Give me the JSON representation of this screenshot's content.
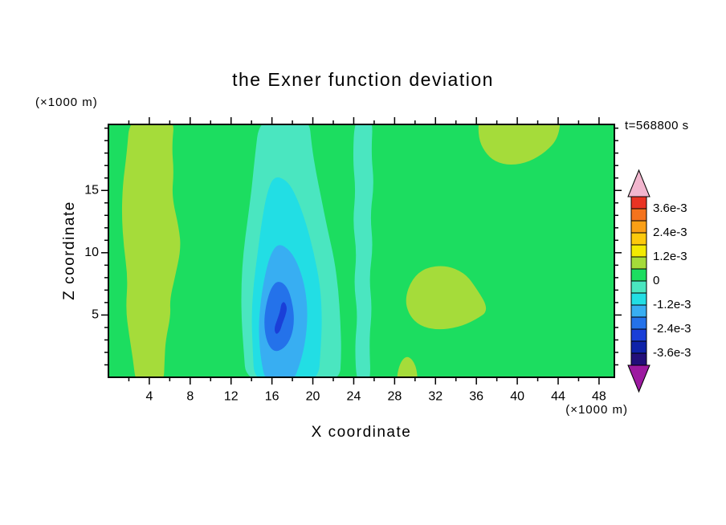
{
  "chart": {
    "title": "the Exner function deviation",
    "time_label": "t=568800 s",
    "xlabel": "X coordinate",
    "ylabel": "Z coordinate",
    "x_units": "(×1000 m)",
    "y_units": "(×1000 m)"
  },
  "chart_data": {
    "type": "contour",
    "title": "the Exner function deviation",
    "time_label": "t=568800 s",
    "xlabel": "X coordinate",
    "ylabel": "Z coordinate",
    "x_units": "(×1000 m)",
    "y_units": "(×1000 m)",
    "xlim": [
      0,
      49.5
    ],
    "ylim": [
      0,
      20.3
    ],
    "x_major_ticks": [
      4,
      8,
      12,
      16,
      20,
      24,
      28,
      32,
      36,
      40,
      44,
      48
    ],
    "x_minor_step": 2,
    "y_major_ticks": [
      5,
      10,
      15
    ],
    "y_minor_step": 1,
    "colorbar": {
      "levels": [
        -0.0042,
        -0.0036,
        -0.003,
        -0.0024,
        -0.0018,
        -0.0012,
        -0.0006,
        0,
        0.0006,
        0.0012,
        0.0018,
        0.0024,
        0.003,
        0.0036,
        0.0042
      ],
      "labels": [
        "3.6e-3",
        "2.4e-3",
        "1.2e-3",
        "0",
        "-1.2e-3",
        "-2.4e-3",
        "-3.6e-3"
      ],
      "band_colors_top_to_bottom": [
        "#e93323",
        "#f4731d",
        "#fa9f16",
        "#fcc90c",
        "#f3ea02",
        "#a5dc3a",
        "#1cdd60",
        "#4ae6c0",
        "#22dee4",
        "#38aef2",
        "#2472ea",
        "#1a3fd8",
        "#0e22a8",
        "#220f7a"
      ],
      "over_color": "#f2b6ce",
      "under_color": "#9c1aa0"
    },
    "background_region": {
      "name": "field-background",
      "level": "0 to 0.6e-3",
      "color": "#1cdd60"
    },
    "regions": [
      {
        "name": "left-positive-band",
        "level": "0.6e-3 to 1.2e-3",
        "color": "#a5dc3a",
        "points": [
          [
            2.1,
            21
          ],
          [
            6.5,
            21
          ],
          [
            6.2,
            18.5
          ],
          [
            6.4,
            16.5
          ],
          [
            6.2,
            14.5
          ],
          [
            6.9,
            12
          ],
          [
            7.1,
            10.3
          ],
          [
            6.5,
            8
          ],
          [
            6.0,
            6.2
          ],
          [
            6.1,
            5
          ],
          [
            5.6,
            3
          ],
          [
            5.5,
            1.5
          ],
          [
            5.4,
            -0.7
          ],
          [
            2.7,
            -0.7
          ],
          [
            2.4,
            1.5
          ],
          [
            2.0,
            3.5
          ],
          [
            1.7,
            5.5
          ],
          [
            1.9,
            8
          ],
          [
            1.5,
            10.5
          ],
          [
            1.3,
            13
          ],
          [
            1.4,
            15.5
          ],
          [
            1.8,
            18
          ]
        ]
      },
      {
        "name": "central-negative-tongue",
        "level": "-0.6e-3 to 0",
        "color": "#4ae6c0",
        "points": [
          [
            14.8,
            21
          ],
          [
            19.6,
            21
          ],
          [
            19.9,
            18.5
          ],
          [
            20.3,
            16.5
          ],
          [
            20.8,
            14.5
          ],
          [
            21.4,
            12
          ],
          [
            22.1,
            9.5
          ],
          [
            22.5,
            7
          ],
          [
            22.7,
            4.5
          ],
          [
            22.8,
            2
          ],
          [
            22.6,
            -0.7
          ],
          [
            13.5,
            -0.7
          ],
          [
            13.2,
            2.5
          ],
          [
            13.0,
            5
          ],
          [
            13.0,
            7.5
          ],
          [
            13.2,
            10
          ],
          [
            13.6,
            12.5
          ],
          [
            14.0,
            15
          ],
          [
            14.3,
            17.5
          ]
        ]
      },
      {
        "name": "vertical-negative-strip",
        "level": "-0.6e-3 to 0",
        "color": "#4ae6c0",
        "points": [
          [
            24.1,
            21
          ],
          [
            25.9,
            21
          ],
          [
            25.7,
            18
          ],
          [
            26.0,
            15.5
          ],
          [
            25.6,
            13
          ],
          [
            25.9,
            10.5
          ],
          [
            25.5,
            8
          ],
          [
            25.8,
            5.5
          ],
          [
            25.5,
            3
          ],
          [
            25.7,
            -0.7
          ],
          [
            24.3,
            -0.7
          ],
          [
            24.1,
            2.5
          ],
          [
            24.4,
            5
          ],
          [
            24.0,
            7.5
          ],
          [
            24.3,
            10
          ],
          [
            23.9,
            12.5
          ],
          [
            24.2,
            15
          ],
          [
            23.9,
            17.5
          ]
        ]
      },
      {
        "name": "right-positive-blob",
        "level": "0.6e-3 to 1.2e-3",
        "color": "#a5dc3a",
        "points": [
          [
            31.0,
            8.8
          ],
          [
            33.0,
            9.0
          ],
          [
            34.8,
            8.4
          ],
          [
            35.8,
            7.4
          ],
          [
            37.3,
            5.4
          ],
          [
            35.9,
            4.6
          ],
          [
            34.2,
            4.0
          ],
          [
            32.2,
            3.8
          ],
          [
            30.5,
            4.1
          ],
          [
            29.4,
            5.0
          ],
          [
            29.0,
            6.3
          ],
          [
            29.7,
            7.9
          ]
        ]
      },
      {
        "name": "top-right-positive-region",
        "level": "0.6e-3 to 1.2e-3",
        "color": "#a5dc3a",
        "points": [
          [
            36.2,
            21
          ],
          [
            44.3,
            21
          ],
          [
            44.0,
            19.2
          ],
          [
            42.8,
            18.1
          ],
          [
            41.2,
            17.3
          ],
          [
            39.4,
            17.0
          ],
          [
            37.8,
            17.3
          ],
          [
            36.8,
            18.1
          ],
          [
            36.2,
            19.2
          ]
        ]
      },
      {
        "name": "bottom-positive-patch",
        "level": "0.6e-3 to 1.2e-3",
        "color": "#a5dc3a",
        "points": [
          [
            28.1,
            -0.5
          ],
          [
            30.3,
            -0.5
          ],
          [
            30.1,
            1.0
          ],
          [
            29.3,
            1.8
          ],
          [
            28.5,
            1.2
          ]
        ]
      },
      {
        "name": "cyan-ring",
        "level": "-1.2e-3 to -0.6e-3",
        "color": "#22dee4",
        "points": [
          [
            16.2,
            16.2
          ],
          [
            17.5,
            15.8
          ],
          [
            18.4,
            14.5
          ],
          [
            19.3,
            12.5
          ],
          [
            20.1,
            10
          ],
          [
            20.7,
            7.5
          ],
          [
            20.9,
            5
          ],
          [
            20.8,
            2.5
          ],
          [
            20.5,
            -0.7
          ],
          [
            14.3,
            -0.7
          ],
          [
            14.1,
            2.5
          ],
          [
            14.0,
            5
          ],
          [
            14.2,
            7.5
          ],
          [
            14.6,
            10
          ],
          [
            15.0,
            12.5
          ],
          [
            15.5,
            14.8
          ]
        ]
      },
      {
        "name": "sky-blue-ring",
        "level": "-1.8e-3 to -1.2e-3",
        "color": "#38aef2",
        "points": [
          [
            16.6,
            10.8
          ],
          [
            17.8,
            10.2
          ],
          [
            18.7,
            8.8
          ],
          [
            19.3,
            7
          ],
          [
            19.5,
            5
          ],
          [
            19.3,
            3
          ],
          [
            18.8,
            1.2
          ],
          [
            18.0,
            -0.5
          ],
          [
            15.4,
            -0.5
          ],
          [
            14.9,
            1.5
          ],
          [
            14.7,
            3.5
          ],
          [
            14.8,
            5.5
          ],
          [
            15.2,
            7.8
          ],
          [
            15.8,
            9.8
          ]
        ]
      },
      {
        "name": "blue-core",
        "level": "-2.4e-3 to -1.8e-3",
        "color": "#2472ea",
        "points": [
          [
            16.6,
            7.8
          ],
          [
            17.5,
            7.3
          ],
          [
            18.0,
            6.0
          ],
          [
            18.2,
            4.5
          ],
          [
            17.9,
            3.2
          ],
          [
            17.2,
            2.3
          ],
          [
            16.2,
            2.0
          ],
          [
            15.5,
            2.8
          ],
          [
            15.2,
            4.2
          ],
          [
            15.4,
            5.8
          ],
          [
            15.9,
            7.2
          ]
        ]
      },
      {
        "name": "dark-blue-streak",
        "level": "-3.0e-3 to -2.4e-3",
        "color": "#1a3fd8",
        "points": [
          [
            17.2,
            6.1
          ],
          [
            17.5,
            5.6
          ],
          [
            17.3,
            4.9
          ],
          [
            17.0,
            4.3
          ],
          [
            16.8,
            3.7
          ],
          [
            16.4,
            3.4
          ],
          [
            16.2,
            3.9
          ],
          [
            16.5,
            4.6
          ],
          [
            16.8,
            5.3
          ],
          [
            16.9,
            5.9
          ]
        ]
      }
    ]
  }
}
